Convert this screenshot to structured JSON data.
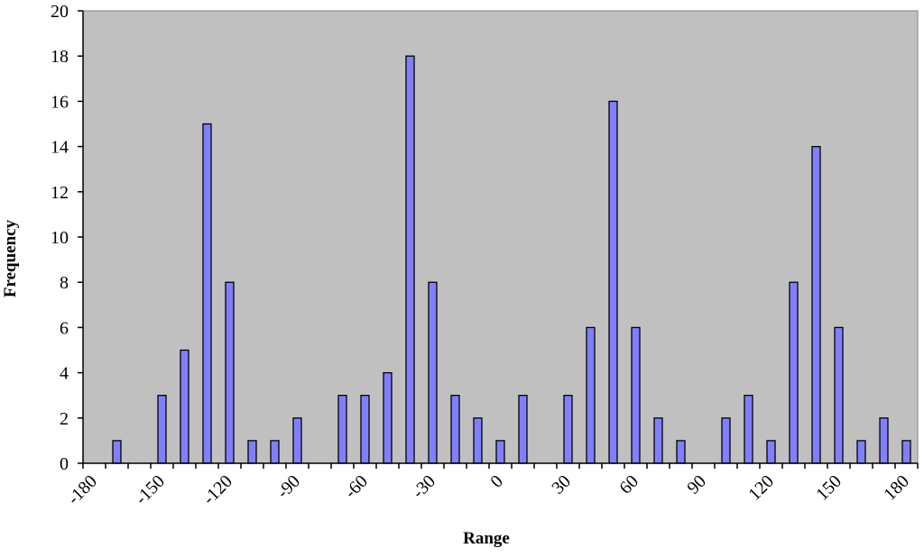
{
  "chart_data": {
    "type": "bar",
    "title": "",
    "xlabel": "Range",
    "ylabel": "Frequency",
    "ylim": [
      0,
      20
    ],
    "yticks": [
      "0",
      "2",
      "4",
      "6",
      "8",
      "10",
      "12",
      "14",
      "16",
      "18",
      "20"
    ],
    "xticks": [
      "-180",
      "-150",
      "-120",
      "-90",
      "-60",
      "-30",
      "0",
      "30",
      "60",
      "90",
      "120",
      "150",
      "180"
    ],
    "xlim": [
      -180,
      180
    ],
    "grid": false,
    "legend": "none",
    "colors": {
      "bar_fill": "#8080ff",
      "bar_stroke": "#000000",
      "plot_bg": "#c0c0c0"
    },
    "bars": [
      {
        "x": -170,
        "y": 1
      },
      {
        "x": -160,
        "y": 0
      },
      {
        "x": -150,
        "y": 3
      },
      {
        "x": -140,
        "y": 5
      },
      {
        "x": -130,
        "y": 15
      },
      {
        "x": -120,
        "y": 8
      },
      {
        "x": -110,
        "y": 1
      },
      {
        "x": -100,
        "y": 1
      },
      {
        "x": -90,
        "y": 2
      },
      {
        "x": -80,
        "y": 0
      },
      {
        "x": -70,
        "y": 3
      },
      {
        "x": -60,
        "y": 3
      },
      {
        "x": -50,
        "y": 4
      },
      {
        "x": -40,
        "y": 18
      },
      {
        "x": -30,
        "y": 8
      },
      {
        "x": -20,
        "y": 3
      },
      {
        "x": -10,
        "y": 2
      },
      {
        "x": 0,
        "y": 1
      },
      {
        "x": 10,
        "y": 3
      },
      {
        "x": 20,
        "y": 0
      },
      {
        "x": 30,
        "y": 3
      },
      {
        "x": 40,
        "y": 6
      },
      {
        "x": 50,
        "y": 16
      },
      {
        "x": 60,
        "y": 6
      },
      {
        "x": 70,
        "y": 2
      },
      {
        "x": 80,
        "y": 1
      },
      {
        "x": 90,
        "y": 0
      },
      {
        "x": 100,
        "y": 2
      },
      {
        "x": 110,
        "y": 3
      },
      {
        "x": 120,
        "y": 1
      },
      {
        "x": 130,
        "y": 8
      },
      {
        "x": 140,
        "y": 14
      },
      {
        "x": 150,
        "y": 6
      },
      {
        "x": 160,
        "y": 1
      },
      {
        "x": 170,
        "y": 2
      },
      {
        "x": 180,
        "y": 1
      }
    ]
  }
}
